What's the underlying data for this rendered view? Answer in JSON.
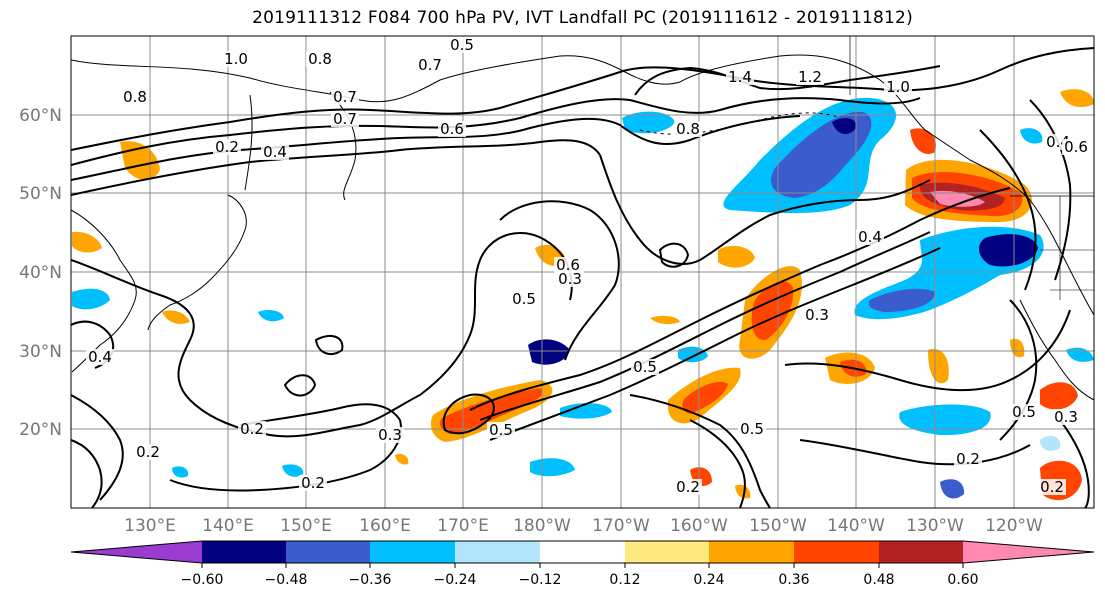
{
  "title": "2019111312 F084 700 hPa PV, IVT Landfall PC (2019111612 - 2019111812)",
  "lat_labels": [
    "60°N",
    "50°N",
    "40°N",
    "30°N",
    "20°N"
  ],
  "lon_labels": [
    "130°E",
    "140°E",
    "150°E",
    "160°E",
    "170°E",
    "180°W",
    "170°W",
    "160°W",
    "150°W",
    "140°W",
    "130°W",
    "120°W"
  ],
  "colorbar": {
    "ticks": [
      "−0.60",
      "−0.48",
      "−0.36",
      "−0.24",
      "−0.12",
      "0.12",
      "0.24",
      "0.36",
      "0.48",
      "0.60"
    ],
    "colors": [
      "#9c3bd0",
      "#000080",
      "#3a5ccc",
      "#00bfff",
      "#b3e5fc",
      "#ffffff",
      "#ffe97f",
      "#ffa500",
      "#ff4500",
      "#b22222",
      "#ff88b0"
    ]
  },
  "contour_labels": [
    "1.0",
    "0.8",
    "0.7",
    "0.5",
    "0.7",
    "0.6",
    "1.4",
    "1.2",
    "1.0",
    "0.8",
    "0.6",
    "0.4",
    "0.2",
    "0.5",
    "0.3",
    "0.4",
    "0.3",
    "0.5",
    "0.3",
    "0.2",
    "0.5",
    "0.2",
    "0.4",
    "0.2",
    "0.2",
    "0.4",
    "0.5",
    "0.3",
    "0.2",
    "0.6",
    "0.8",
    "0.7",
    "0.2",
    "0.5"
  ],
  "colors": {
    "coastline": "#000000",
    "grid": "#8c8c8c",
    "contour": "#000000"
  }
}
